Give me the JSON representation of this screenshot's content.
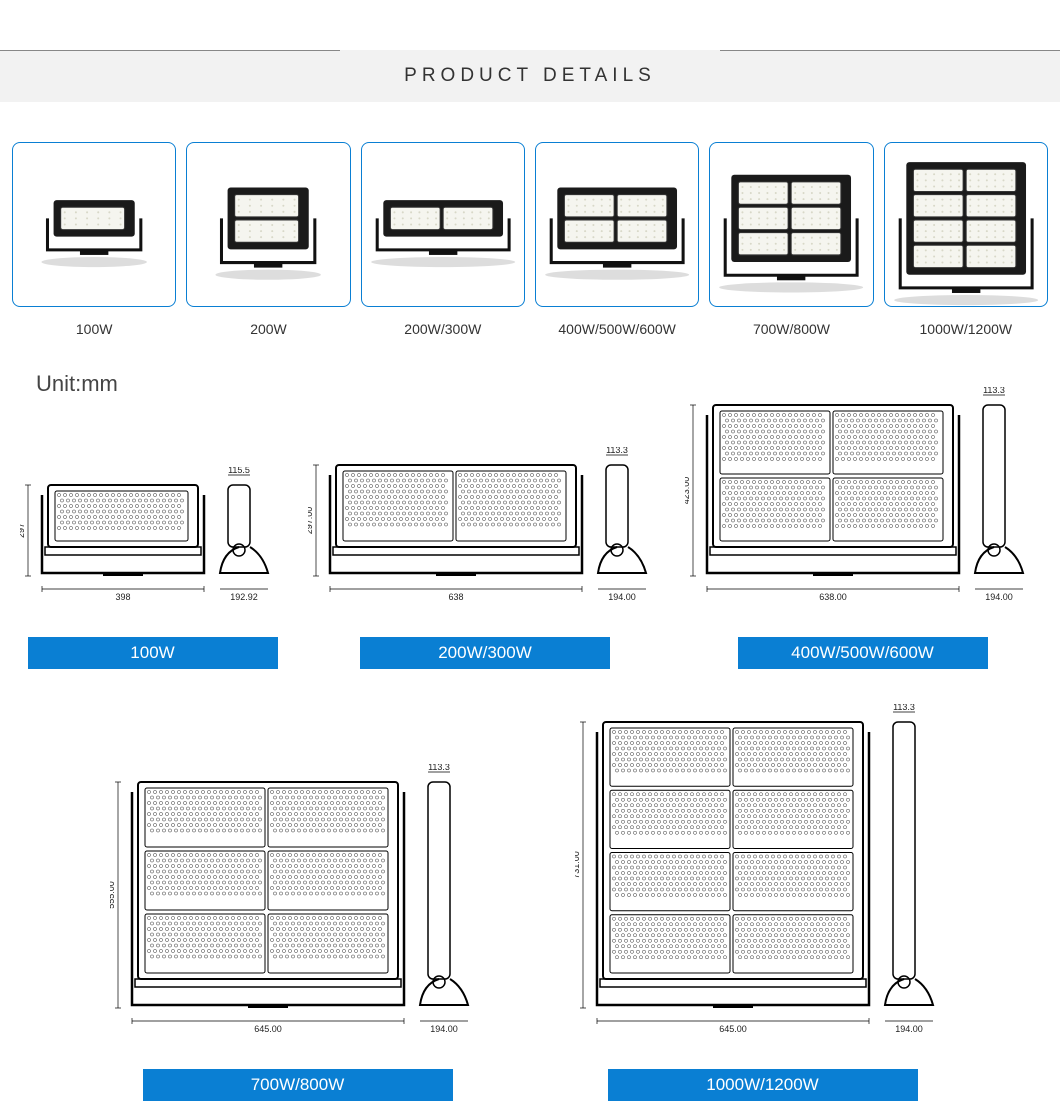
{
  "page_title": "PRODUCT DETAILS",
  "unit_label": "Unit:mm",
  "colors": {
    "card_border": "#0a7fd3",
    "label_bg": "#0a7fd3",
    "label_fg": "#ffffff",
    "band_bg": "#f2f2f2",
    "body_bg": "#ffffff",
    "text": "#333333"
  },
  "products": [
    {
      "label": "100W",
      "modules": 1,
      "cols": 1
    },
    {
      "label": "200W",
      "modules": 2,
      "cols": 1
    },
    {
      "label": "200W/300W",
      "modules": 1,
      "cols": 2
    },
    {
      "label": "400W/500W/600W",
      "modules": 2,
      "cols": 2
    },
    {
      "label": "700W/800W",
      "modules": 3,
      "cols": 2
    },
    {
      "label": "1000W/1200W",
      "modules": 4,
      "cols": 2
    }
  ],
  "diagrams_row1": [
    {
      "label": "100W",
      "front_width": "398",
      "front_height": "297",
      "side_top": "115.5",
      "side_bottom": "192.92",
      "modules": 1,
      "cols": 1,
      "scale_w": 150,
      "scale_h": 90
    },
    {
      "label": "200W/300W",
      "front_width": "638",
      "front_height": "297.00",
      "side_top": "113.3",
      "side_bottom": "194.00",
      "modules": 1,
      "cols": 2,
      "scale_w": 240,
      "scale_h": 110
    },
    {
      "label": "400W/500W/600W",
      "front_width": "638.00",
      "front_height": "423.00",
      "side_top": "113.3",
      "side_bottom": "194.00",
      "modules": 2,
      "cols": 2,
      "scale_w": 240,
      "scale_h": 170
    }
  ],
  "diagrams_row2": [
    {
      "label": "700W/800W",
      "front_width": "645.00",
      "front_height": "555.00",
      "side_top": "113.3",
      "side_bottom": "194.00",
      "modules": 3,
      "cols": 2,
      "scale_w": 260,
      "scale_h": 225
    },
    {
      "label": "1000W/1200W",
      "front_width": "645.00",
      "front_height": "731.00",
      "side_top": "113.3",
      "side_bottom": "194.00",
      "modules": 4,
      "cols": 2,
      "scale_w": 260,
      "scale_h": 285
    }
  ]
}
